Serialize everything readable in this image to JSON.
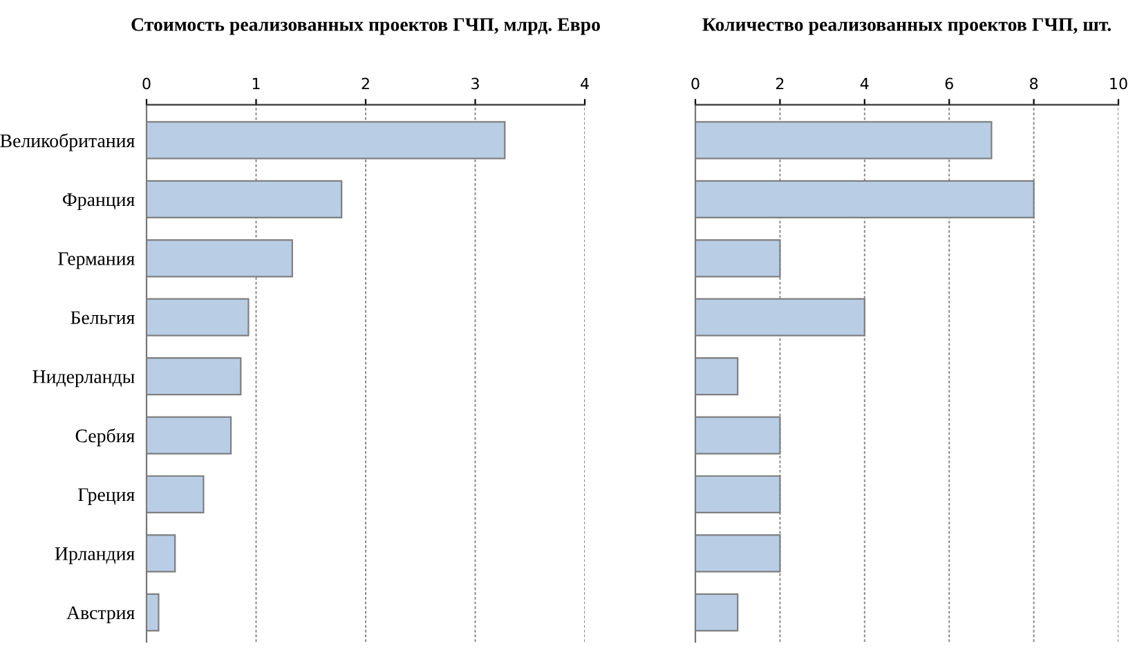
{
  "chart_data": [
    {
      "type": "bar",
      "orientation": "horizontal",
      "title": "Стоимость реализованных проектов ГЧП, млрд. Евро",
      "categories": [
        "Великобритания",
        "Франция",
        "Германия",
        "Бельгия",
        "Нидерланды",
        "Сербия",
        "Греция",
        "Ирландия",
        "Австрия"
      ],
      "values": [
        3.27,
        1.78,
        1.33,
        0.93,
        0.86,
        0.77,
        0.52,
        0.26,
        0.11
      ],
      "color": "#b9cde5",
      "xlim": [
        0,
        4
      ],
      "xticks": [
        0,
        1,
        2,
        3,
        4
      ],
      "grid": "x"
    },
    {
      "type": "bar",
      "orientation": "horizontal",
      "title": "Количество реализованных проектов ГЧП, шт.",
      "categories": [
        null,
        null,
        null,
        null,
        null,
        null,
        null,
        null,
        null
      ],
      "values": [
        7,
        8,
        2,
        4,
        1,
        2,
        2,
        2,
        1
      ],
      "color": "#b9cde5",
      "xlim": [
        0,
        10
      ],
      "xticks": [
        0,
        2,
        4,
        6,
        8,
        10
      ],
      "grid": "x"
    }
  ]
}
